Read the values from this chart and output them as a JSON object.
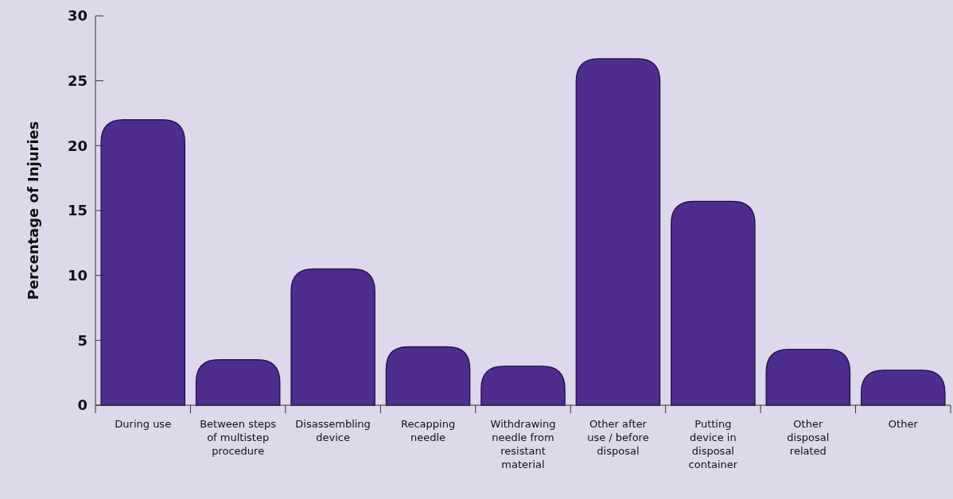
{
  "chart_data": {
    "type": "bar",
    "ylabel": "Percentage of Injuries",
    "categories": [
      "During use",
      "Between steps of multistep procedure",
      "Disassembling device",
      "Recapping needle",
      "Withdrawing needle from resistant material",
      "Other after use / before disposal",
      "Putting device in disposal container",
      "Other disposal related",
      "Other"
    ],
    "values": [
      22,
      3.5,
      10.5,
      4.5,
      3,
      26.7,
      15.7,
      4.3,
      2.7
    ],
    "color": "#4f2d8f",
    "ylim": [
      0,
      30
    ],
    "yticks": [
      0,
      5,
      10,
      15,
      20,
      25,
      30
    ],
    "grid": false
  }
}
